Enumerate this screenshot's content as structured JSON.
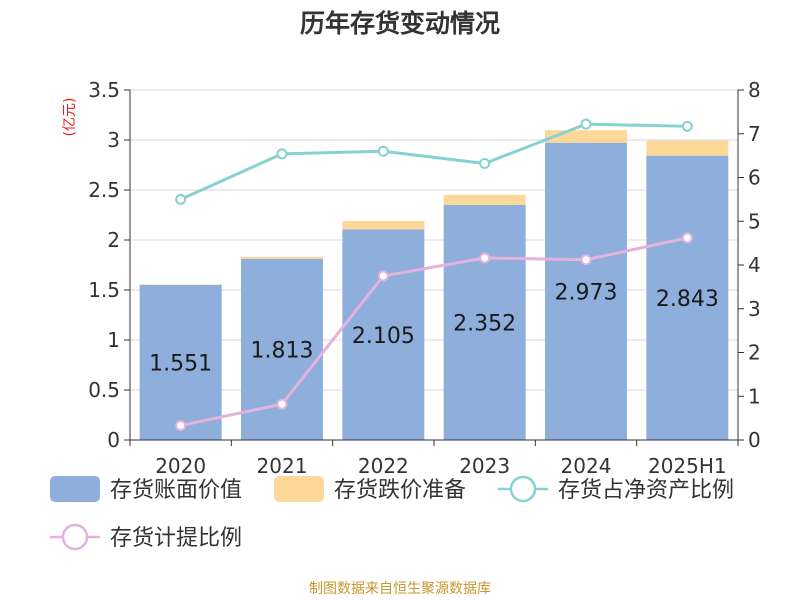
{
  "chart_data": {
    "type": "bar",
    "title": "历年存货变动情况",
    "y_left_unit": "(亿元)",
    "categories": [
      "2020",
      "2021",
      "2022",
      "2023",
      "2024",
      "2025H1"
    ],
    "left_axis": {
      "ylim": [
        0,
        3.5
      ],
      "ticks": [
        "0",
        "0.5",
        "1",
        "1.5",
        "2",
        "2.5",
        "3",
        "3.5"
      ]
    },
    "right_axis": {
      "ylim": [
        0,
        8
      ],
      "ticks": [
        "0",
        "1",
        "2",
        "3",
        "4",
        "5",
        "6",
        "7",
        "8"
      ]
    },
    "stacked": true,
    "grid": true,
    "legend_position": "bottom",
    "series": [
      {
        "name": "存货账面价值",
        "type": "bar",
        "axis": "left",
        "color": "#8eaedc",
        "values": [
          1.551,
          1.813,
          2.105,
          2.352,
          2.973,
          2.843
        ],
        "labels": [
          "1.551",
          "1.813",
          "2.105",
          "2.352",
          "2.973",
          "2.843"
        ]
      },
      {
        "name": "存货跌价准备",
        "type": "bar",
        "axis": "left",
        "color": "#fed899",
        "values": [
          0.005,
          0.02,
          0.085,
          0.1,
          0.125,
          0.15
        ]
      },
      {
        "name": "存货占净资产比例",
        "type": "line",
        "axis": "right",
        "color": "#86d1d2",
        "values": [
          5.5,
          6.54,
          6.6,
          6.32,
          7.22,
          7.17
        ]
      },
      {
        "name": "存货计提比例",
        "type": "line",
        "axis": "right",
        "color": "#e4b2dd",
        "values": [
          0.33,
          0.82,
          3.75,
          4.16,
          4.12,
          4.62
        ]
      }
    ]
  },
  "source": "制图数据来自恒生聚源数据库"
}
